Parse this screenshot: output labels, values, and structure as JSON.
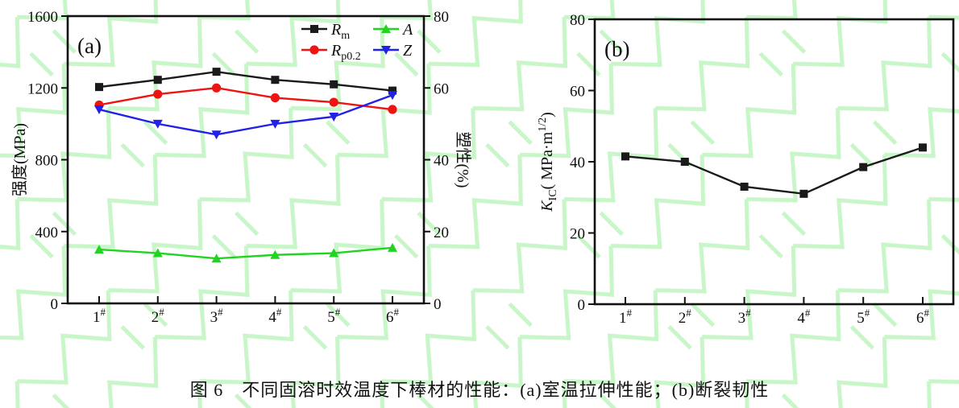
{
  "figure": {
    "caption": "图 6　不同固溶时效温度下棒材的性能：(a)室温拉伸性能；(b)断裂韧性"
  },
  "colors": {
    "axis": "#111111",
    "black_series": "#1a1a1a",
    "red_series": "#ee1411",
    "green_series": "#21d421",
    "blue_series": "#2121e8",
    "watermark": "#9bef9b"
  },
  "chart_data": [
    {
      "id": "a",
      "type": "line",
      "panel_label": "(a)",
      "title": "",
      "xlabel": "",
      "categories": [
        "1#",
        "2#",
        "3#",
        "4#",
        "5#",
        "6#"
      ],
      "grid": false,
      "legend_position": "top-right-inside",
      "left_axis": {
        "label": "强度(MPa)",
        "min": 0,
        "max": 1600,
        "ticks": [
          0,
          400,
          800,
          1200,
          1600
        ]
      },
      "right_axis": {
        "label": "塑性(%)",
        "min": 0,
        "max": 80,
        "ticks": [
          0,
          20,
          40,
          60,
          80
        ]
      },
      "series": [
        {
          "name": "Rm",
          "label_parts": [
            {
              "t": "R",
              "style": "i"
            },
            {
              "t": "m",
              "style": "sub"
            }
          ],
          "axis": "left",
          "color": "#1a1a1a",
          "marker": "square",
          "values": [
            1205,
            1245,
            1290,
            1245,
            1220,
            1185
          ]
        },
        {
          "name": "Rp0.2",
          "label_parts": [
            {
              "t": "R",
              "style": "i"
            },
            {
              "t": "p0.2",
              "style": "sub"
            }
          ],
          "axis": "left",
          "color": "#ee1411",
          "marker": "circle",
          "values": [
            1105,
            1165,
            1200,
            1145,
            1120,
            1080
          ]
        },
        {
          "name": "A",
          "label_parts": [
            {
              "t": "A",
              "style": "i"
            }
          ],
          "axis": "right",
          "color": "#21d421",
          "marker": "triangle-up",
          "values": [
            15,
            14,
            12.5,
            13.5,
            14,
            15.5
          ]
        },
        {
          "name": "Z",
          "label_parts": [
            {
              "t": "Z",
              "style": "i"
            }
          ],
          "axis": "right",
          "color": "#2121e8",
          "marker": "triangle-down",
          "values": [
            54,
            50,
            47,
            50,
            52,
            58
          ]
        }
      ],
      "legend_columns": [
        [
          "Rm",
          "Rp0.2"
        ],
        [
          "A",
          "Z"
        ]
      ]
    },
    {
      "id": "b",
      "type": "line",
      "panel_label": "(b)",
      "title": "",
      "xlabel": "",
      "categories": [
        "1#",
        "2#",
        "3#",
        "4#",
        "5#",
        "6#"
      ],
      "grid": false,
      "legend_position": "none",
      "left_axis": {
        "label_parts": [
          {
            "t": "K",
            "style": "i"
          },
          {
            "t": "IC",
            "style": "sub"
          },
          {
            "t": "( MPa·m",
            "style": "n"
          },
          {
            "t": "1/2",
            "style": "sup"
          },
          {
            "t": ")",
            "style": "n"
          }
        ],
        "min": 0,
        "max": 80,
        "ticks": [
          0,
          20,
          40,
          60,
          80
        ]
      },
      "series": [
        {
          "name": "KIC",
          "label_parts": [
            {
              "t": "K",
              "style": "i"
            },
            {
              "t": "IC",
              "style": "sub"
            }
          ],
          "axis": "left",
          "color": "#1a1a1a",
          "marker": "square",
          "values": [
            41.5,
            40,
            33,
            31,
            38.5,
            44
          ]
        }
      ]
    }
  ]
}
